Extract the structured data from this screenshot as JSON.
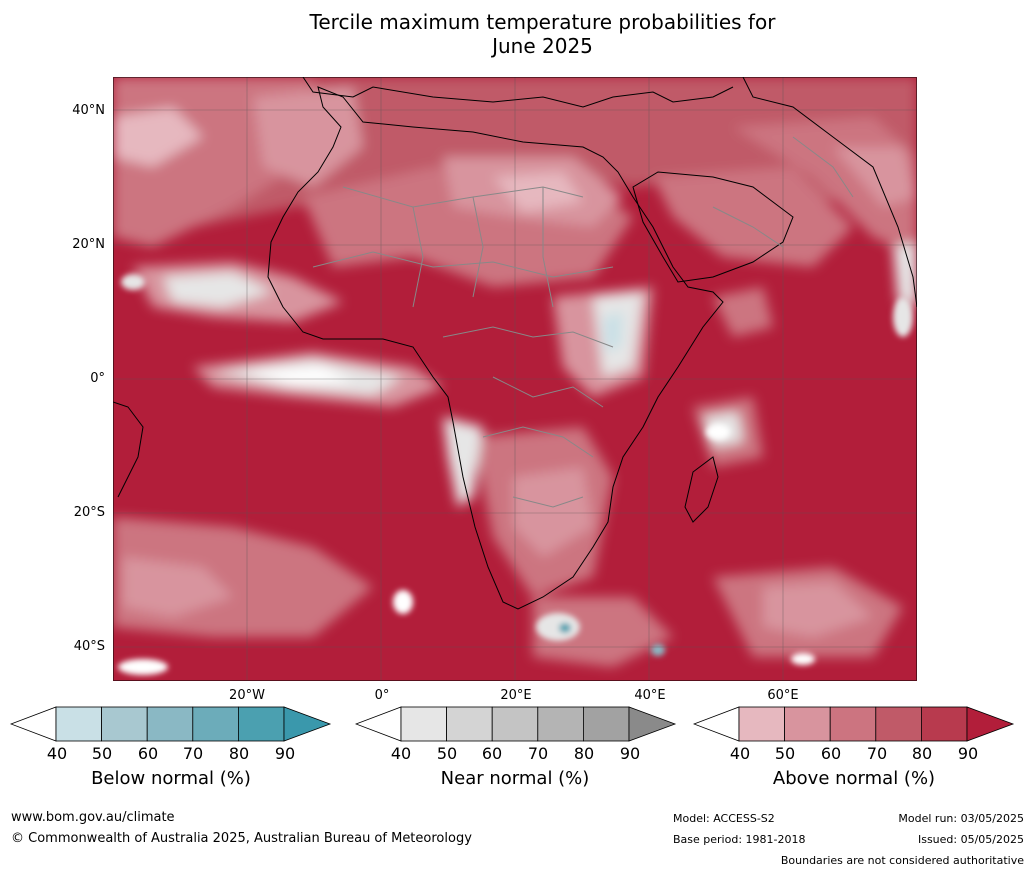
{
  "title": {
    "line1": "Tercile maximum temperature probabilities for",
    "line2": "June 2025"
  },
  "axes": {
    "lat_labels": [
      "40°N",
      "20°N",
      "0°",
      "20°S",
      "40°S"
    ],
    "lon_labels": [
      "20°W",
      "0°",
      "20°E",
      "40°E",
      "60°E"
    ]
  },
  "colorbars": [
    {
      "label": "Below normal (%)",
      "ticks": [
        "40",
        "50",
        "60",
        "70",
        "80",
        "90"
      ],
      "colors": [
        "#ffffff",
        "#c9e0e6",
        "#a8c8d0",
        "#8ab8c4",
        "#6cacba",
        "#4ba0b0",
        "#3a98ac"
      ]
    },
    {
      "label": "Near normal (%)",
      "ticks": [
        "40",
        "50",
        "60",
        "70",
        "80",
        "90"
      ],
      "colors": [
        "#ffffff",
        "#e6e6e6",
        "#d4d4d4",
        "#c4c4c4",
        "#b4b4b4",
        "#a2a2a2",
        "#8a8a8a"
      ]
    },
    {
      "label": "Above normal (%)",
      "ticks": [
        "40",
        "50",
        "60",
        "70",
        "80",
        "90"
      ],
      "colors": [
        "#ffffff",
        "#e6b8bf",
        "#d8949e",
        "#cc7480",
        "#c05a68",
        "#b83a4e",
        "#b21e3a"
      ]
    }
  ],
  "footer": {
    "website": "www.bom.gov.au/climate",
    "copyright": "© Commonwealth of Australia 2025, Australian Bureau of Meteorology",
    "model": "Model: ACCESS-S2",
    "base_period": "Base period: 1981-2018",
    "model_run": "Model run: 03/05/2025",
    "issued": "Issued: 05/05/2025",
    "disclaimer": "Boundaries are not considered authoritative"
  }
}
